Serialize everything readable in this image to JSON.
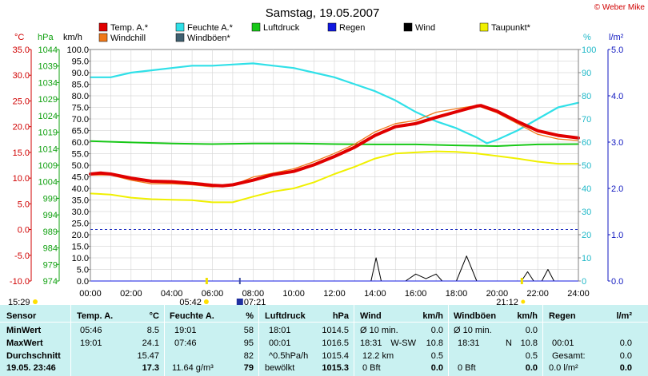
{
  "header": {
    "title": "Samstag, 19.05.2007",
    "copyright": "© Weber Mike"
  },
  "legend": [
    {
      "label": "Temp. A.*",
      "color": "#e00000"
    },
    {
      "label": "Feuchte A.*",
      "color": "#30e0e8"
    },
    {
      "label": "Luftdruck",
      "color": "#18c818"
    },
    {
      "label": "Regen",
      "color": "#1018e0"
    },
    {
      "label": "Wind",
      "color": "#000000"
    },
    {
      "label": "Taupunkt*",
      "color": "#f0f000"
    },
    {
      "label": "Windchill",
      "color": "#f07818"
    },
    {
      "label": "Windböen*",
      "color": "#406070"
    }
  ],
  "axes": {
    "temp_unit": "°C",
    "press_unit": "hPa",
    "wind_unit": "km/h",
    "hum_unit": "%",
    "rain_unit": "l/m²",
    "temp_ticks": [
      "35.0",
      "30.0",
      "25.0",
      "20.0",
      "15.0",
      "10.0",
      "5.0",
      "0.0",
      "-5.0",
      "-10.0"
    ],
    "press_ticks": [
      "1044",
      "1039",
      "1034",
      "1029",
      "1024",
      "1019",
      "1014",
      "1009",
      "1004",
      "999",
      "994",
      "989",
      "984",
      "979",
      "974"
    ],
    "wind_ticks": [
      "100.0",
      "95.0",
      "90.0",
      "85.0",
      "80.0",
      "75.0",
      "70.0",
      "65.0",
      "60.0",
      "55.0",
      "50.0",
      "45.0",
      "40.0",
      "35.0",
      "30.0",
      "25.0",
      "20.0",
      "15.0",
      "10.0",
      "5.0",
      "0.0"
    ],
    "hum_ticks": [
      "100",
      "90",
      "80",
      "70",
      "60",
      "50",
      "40",
      "30",
      "20",
      "10",
      "0"
    ],
    "rain_ticks": [
      "5.0",
      "4.0",
      "3.0",
      "2.0",
      "1.0",
      "0.0"
    ],
    "x_ticks": [
      "00:00",
      "02:00",
      "04:00",
      "06:00",
      "08:00",
      "10:00",
      "12:00",
      "14:00",
      "16:00",
      "18:00",
      "20:00",
      "22:00",
      "24:00"
    ]
  },
  "events": {
    "sunrise_prev": "15:29",
    "sunrise": "05:42",
    "moonrise": "07:21",
    "sunset": "21:12"
  },
  "chart_data": {
    "type": "line",
    "title": "Samstag, 19.05.2007",
    "x_unit": "hours",
    "xlim": [
      0,
      24
    ],
    "series": [
      {
        "name": "Temp. A.*",
        "axis": "°C",
        "ylim": [
          -10,
          35
        ],
        "points": [
          [
            0,
            10.8
          ],
          [
            0.5,
            11
          ],
          [
            1,
            10.8
          ],
          [
            2,
            10.0
          ],
          [
            3,
            9.4
          ],
          [
            4,
            9.3
          ],
          [
            5,
            9.0
          ],
          [
            6,
            8.6
          ],
          [
            6.5,
            8.5
          ],
          [
            7,
            8.7
          ],
          [
            8,
            9.6
          ],
          [
            9,
            10.7
          ],
          [
            10,
            11.3
          ],
          [
            11,
            12.6
          ],
          [
            12,
            14.2
          ],
          [
            13,
            16.0
          ],
          [
            14,
            18.3
          ],
          [
            15,
            20.0
          ],
          [
            16,
            20.6
          ],
          [
            17,
            21.8
          ],
          [
            18,
            22.9
          ],
          [
            19,
            24.0
          ],
          [
            19.2,
            24.1
          ],
          [
            20,
            23.0
          ],
          [
            21,
            21.0
          ],
          [
            22,
            19.2
          ],
          [
            23,
            18.3
          ],
          [
            24,
            17.8
          ]
        ]
      },
      {
        "name": "Windchill",
        "axis": "°C",
        "ylim": [
          -10,
          35
        ],
        "points": [
          [
            0,
            10.6
          ],
          [
            1,
            10.6
          ],
          [
            2,
            9.6
          ],
          [
            3,
            8.9
          ],
          [
            4,
            8.9
          ],
          [
            5,
            8.7
          ],
          [
            6,
            8.3
          ],
          [
            7,
            8.6
          ],
          [
            8,
            10.2
          ],
          [
            9,
            11.0
          ],
          [
            10,
            11.8
          ],
          [
            11,
            13.2
          ],
          [
            12,
            14.8
          ],
          [
            13,
            16.6
          ],
          [
            14,
            19.0
          ],
          [
            15,
            20.6
          ],
          [
            16,
            21.2
          ],
          [
            17,
            22.8
          ],
          [
            18,
            23.5
          ],
          [
            19,
            24.1
          ],
          [
            20,
            22.7
          ],
          [
            21,
            20.6
          ],
          [
            22,
            18.5
          ],
          [
            23,
            17.6
          ],
          [
            24,
            17.3
          ]
        ]
      },
      {
        "name": "Feuchte A.*",
        "axis": "%",
        "ylim": [
          0,
          100
        ],
        "points": [
          [
            0,
            88
          ],
          [
            1,
            88
          ],
          [
            2,
            90
          ],
          [
            3,
            91
          ],
          [
            4,
            92
          ],
          [
            5,
            93
          ],
          [
            6,
            93
          ],
          [
            7,
            93.5
          ],
          [
            8,
            94
          ],
          [
            9,
            93
          ],
          [
            10,
            92
          ],
          [
            11,
            90
          ],
          [
            12,
            88
          ],
          [
            13,
            85
          ],
          [
            14,
            82
          ],
          [
            15,
            78
          ],
          [
            16,
            73
          ],
          [
            17,
            69
          ],
          [
            18,
            66
          ],
          [
            19,
            62
          ],
          [
            19.5,
            59.5
          ],
          [
            20,
            61
          ],
          [
            21,
            65
          ],
          [
            22,
            70
          ],
          [
            23,
            75
          ],
          [
            24,
            77
          ]
        ]
      },
      {
        "name": "Taupunkt*",
        "axis": "°C",
        "ylim": [
          -10,
          35
        ],
        "points": [
          [
            0,
            7.0
          ],
          [
            1,
            6.8
          ],
          [
            2,
            6.2
          ],
          [
            3,
            5.9
          ],
          [
            4,
            5.8
          ],
          [
            5,
            5.7
          ],
          [
            6,
            5.3
          ],
          [
            7,
            5.3
          ],
          [
            8,
            6.4
          ],
          [
            9,
            7.4
          ],
          [
            10,
            8.0
          ],
          [
            11,
            9.2
          ],
          [
            12,
            10.8
          ],
          [
            13,
            12.2
          ],
          [
            14,
            13.8
          ],
          [
            15,
            14.8
          ],
          [
            16,
            15.0
          ],
          [
            17,
            15.2
          ],
          [
            18,
            15.1
          ],
          [
            19,
            14.8
          ],
          [
            20,
            14.3
          ],
          [
            21,
            13.8
          ],
          [
            22,
            13.2
          ],
          [
            23,
            12.8
          ],
          [
            24,
            12.8
          ]
        ]
      },
      {
        "name": "Luftdruck",
        "axis": "hPa",
        "ylim": [
          974,
          1044
        ],
        "points": [
          [
            0,
            1016.3
          ],
          [
            2,
            1015.9
          ],
          [
            4,
            1015.6
          ],
          [
            6,
            1015.4
          ],
          [
            8,
            1015.6
          ],
          [
            10,
            1015.6
          ],
          [
            12,
            1015.4
          ],
          [
            14,
            1015.3
          ],
          [
            16,
            1015.3
          ],
          [
            18,
            1015.0
          ],
          [
            20,
            1014.8
          ],
          [
            22,
            1015.3
          ],
          [
            24,
            1015.4
          ]
        ]
      },
      {
        "name": "Wind",
        "axis": "km/h",
        "ylim": [
          0,
          100
        ],
        "points": [
          [
            0,
            0
          ],
          [
            13.8,
            0
          ],
          [
            14.05,
            10
          ],
          [
            14.3,
            0
          ],
          [
            15.5,
            0
          ],
          [
            16,
            3
          ],
          [
            16.5,
            1
          ],
          [
            17,
            3
          ],
          [
            17.3,
            0
          ],
          [
            18,
            0
          ],
          [
            18.5,
            10.8
          ],
          [
            19,
            0
          ],
          [
            21.2,
            0
          ],
          [
            21.5,
            4
          ],
          [
            21.8,
            0
          ],
          [
            22.2,
            0
          ],
          [
            22.5,
            5
          ],
          [
            22.8,
            0
          ],
          [
            24,
            0
          ]
        ]
      },
      {
        "name": "Regen",
        "axis": "l/m²",
        "ylim": [
          0,
          5
        ],
        "points": [
          [
            0,
            0
          ],
          [
            24,
            0
          ]
        ]
      }
    ]
  },
  "table": {
    "headers": [
      "Sensor",
      "Temp. A.",
      "°C",
      "Feuchte A.",
      "%",
      "Luftdruck",
      "hPa",
      "Wind",
      "km/h",
      "Windböen",
      "km/h",
      "Regen",
      "l/m²"
    ],
    "rows": [
      {
        "label": "MinWert",
        "temp_time": "05:46",
        "temp": "8.5",
        "hum_time": "19:01",
        "hum": "58",
        "press_time": "18:01",
        "press": "1014.5",
        "wind_a": "Ø 10 min.",
        "wind_b": "",
        "wind": "0.0",
        "gust_a": "Ø 10 min.",
        "gust_b": "",
        "gust": "0.0",
        "rain_a": "",
        "rain": ""
      },
      {
        "label": "MaxWert",
        "temp_time": "19:01",
        "temp": "24.1",
        "hum_time": "07:46",
        "hum": "95",
        "press_time": "00:01",
        "press": "1016.5",
        "wind_a": "18:31",
        "wind_b": "W-SW",
        "wind": "10.8",
        "gust_a": "18:31",
        "gust_b": "N",
        "gust": "10.8",
        "rain_a": "00:01",
        "rain": "0.0"
      },
      {
        "label": "Durchschnitt",
        "temp_time": "",
        "temp": "15.47",
        "hum_time": "",
        "hum": "82",
        "press_time": "^0.5hPa/h",
        "press": "1015.4",
        "wind_a": "12.2 km",
        "wind_b": "",
        "wind": "0.5",
        "gust_a": "",
        "gust_b": "",
        "gust": "0.5",
        "rain_a": "Gesamt:",
        "rain": "0.0"
      },
      {
        "label": "19.05. 23:46",
        "temp_time": "",
        "temp": "17.3",
        "hum_time": "11.64 g/m³",
        "hum": "79",
        "press_time": "bewölkt",
        "press": "1015.3",
        "wind_a": "0 Bft",
        "wind_b": "",
        "wind": "0.0",
        "gust_a": "0 Bft",
        "gust_b": "",
        "gust": "0.0",
        "rain_a": "0.0 l/m²",
        "rain": "0.0"
      }
    ]
  }
}
